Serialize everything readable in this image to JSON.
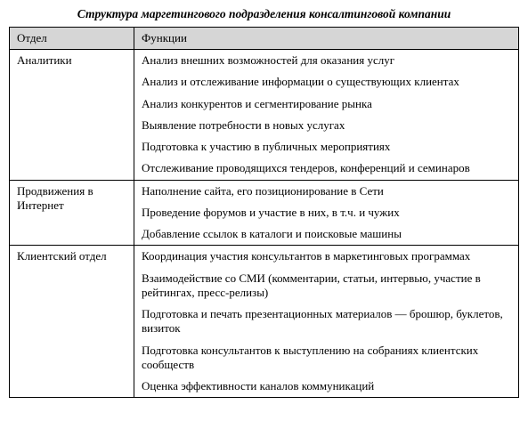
{
  "title": "Структура маргетингового подразделения консалтинговой компании",
  "headers": {
    "dept": "Отдел",
    "func": "Функции"
  },
  "rows": [
    {
      "dept": "Аналитики",
      "functions": [
        "Анализ внешних возможностей для оказания услуг",
        "Анализ и отслеживание информации о существующих клиентах",
        "Анализ конкурентов и сегментирование рынка",
        "Выявление потребности в новых услугах",
        "Подготовка к участию в публичных мероприятиях",
        "Отслеживание проводящихся тендеров, конференций и се­минаров"
      ]
    },
    {
      "dept": "Продвижения в Интернет",
      "functions": [
        "Наполнение сайта, его позиционирование в Сети",
        "Проведение форумов и участие в них, в т.ч. и чужих",
        "Добавление ссылок в каталоги и поисковые машины"
      ]
    },
    {
      "dept": "Клиентский отдел",
      "functions": [
        "Координация участия консультантов в маркетинговых про­граммах",
        "Взаимодействие со СМИ (комментарии, статьи, интервью, участие в рейтингах, пресс-релизы)",
        "Подготовка и печать презентационных материалов — бро­шюр, буклетов, визиток",
        "Подготовка консультантов к выступлению на собраниях кли­ентских сообществ",
        "Оценка эффективности каналов коммуникаций"
      ]
    }
  ]
}
